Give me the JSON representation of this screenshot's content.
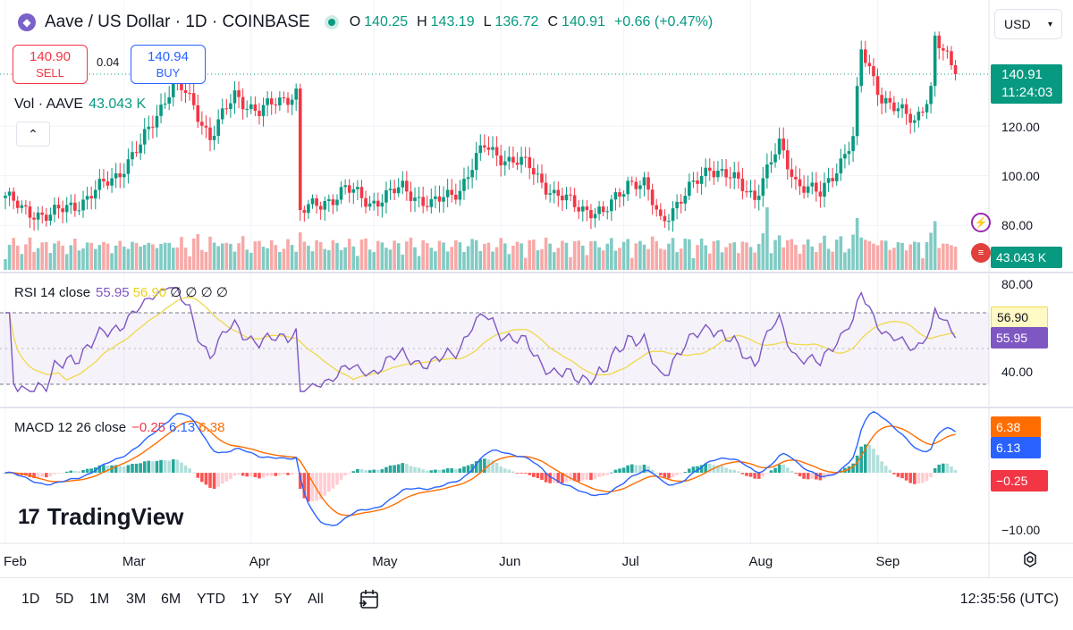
{
  "header": {
    "symbol": "Aave / US Dollar · 1D · COINBASE",
    "open_label": "O",
    "open": "140.25",
    "high_label": "H",
    "high": "143.19",
    "low_label": "L",
    "low": "136.72",
    "close_label": "C",
    "close": "140.91",
    "change": "+0.66 (+0.47%)",
    "currency": "USD"
  },
  "trade": {
    "sell_price": "140.90",
    "sell_label": "SELL",
    "spread": "0.04",
    "buy_price": "140.94",
    "buy_label": "BUY"
  },
  "volume_pane": {
    "label": "Vol · AAVE",
    "value": "43.043 K"
  },
  "rsi_pane": {
    "label": "RSI 14 close",
    "rsi": "55.95",
    "ma": "56.90",
    "extra": "∅ ∅ ∅ ∅"
  },
  "macd_pane": {
    "label": "MACD 12 26 close",
    "hist": "−0.25",
    "macd": "6.13",
    "signal": "6.38"
  },
  "brand": "TradingView",
  "axis": {
    "price_ticks": [
      "120.00",
      "100.00",
      "80.00"
    ],
    "rsi_ticks": [
      "80.00",
      "40.00"
    ],
    "macd_ticks": [
      "−10.00"
    ],
    "months": [
      "Feb",
      "Mar",
      "Apr",
      "May",
      "Jun",
      "Jul",
      "Aug",
      "Sep"
    ]
  },
  "badges": {
    "last_price": "140.91",
    "countdown": "11:24:03",
    "volume": "43.043 K",
    "rsi_ma": "56.90",
    "rsi": "55.95",
    "macd_signal": "6.38",
    "macd": "6.13",
    "macd_hist": "−0.25"
  },
  "footer": {
    "ranges": [
      "1D",
      "5D",
      "1M",
      "3M",
      "6M",
      "YTD",
      "1Y",
      "5Y",
      "All"
    ],
    "clock": "12:35:56 (UTC)"
  },
  "colors": {
    "up": "#089981",
    "down": "#f23645",
    "rsi": "#7e57c2",
    "rsi_ma": "#f0d94a",
    "macd": "#2962ff",
    "signal": "#ff6d00",
    "vol_up": "#80cbc4",
    "vol_down": "#f7a9a7"
  },
  "chart_data": {
    "type": "candlestick",
    "title": "Aave / US Dollar · 1D · COINBASE",
    "price_range": [
      70,
      160
    ],
    "x_months": [
      "Feb",
      "Mar",
      "Apr",
      "May",
      "Jun",
      "Jul",
      "Aug",
      "Sep"
    ],
    "close_keypoints": [
      [
        "Feb 01",
        92
      ],
      [
        "Feb 05",
        86
      ],
      [
        "Feb 12",
        84
      ],
      [
        "Feb 20",
        90
      ],
      [
        "Feb 28",
        100
      ],
      [
        "Mar 05",
        112
      ],
      [
        "Mar 10",
        128
      ],
      [
        "Mar 13",
        138
      ],
      [
        "Mar 16",
        133
      ],
      [
        "Mar 22",
        116
      ],
      [
        "Mar 28",
        132
      ],
      [
        "Apr 03",
        126
      ],
      [
        "Apr 08",
        130
      ],
      [
        "Apr 12",
        134
      ],
      [
        "Apr 13",
        86
      ],
      [
        "Apr 18",
        88
      ],
      [
        "Apr 24",
        95
      ],
      [
        "Apr 30",
        89
      ],
      [
        "May 08",
        95
      ],
      [
        "May 15",
        88
      ],
      [
        "May 22",
        95
      ],
      [
        "May 28",
        112
      ],
      [
        "Jun 03",
        106
      ],
      [
        "Jun 08",
        104
      ],
      [
        "Jun 14",
        92
      ],
      [
        "Jun 20",
        88
      ],
      [
        "Jun 26",
        84
      ],
      [
        "Jul 02",
        98
      ],
      [
        "Jul 06",
        96
      ],
      [
        "Jul 10",
        82
      ],
      [
        "Jul 16",
        92
      ],
      [
        "Jul 22",
        104
      ],
      [
        "Jul 28",
        98
      ],
      [
        "Aug 02",
        92
      ],
      [
        "Aug 08",
        112
      ],
      [
        "Aug 12",
        98
      ],
      [
        "Aug 18",
        92
      ],
      [
        "Aug 26",
        115
      ],
      [
        "Aug 28",
        150
      ],
      [
        "Sep 02",
        132
      ],
      [
        "Sep 06",
        126
      ],
      [
        "Sep 10",
        122
      ],
      [
        "Sep 14",
        135
      ],
      [
        "Sep 15",
        155
      ],
      [
        "Sep 20",
        141
      ]
    ],
    "last_close": 140.91,
    "rsi": {
      "last": 55.95,
      "ma_last": 56.9,
      "range": [
        25,
        85
      ],
      "bands": [
        70,
        30
      ]
    },
    "macd": {
      "macd_last": 6.13,
      "signal_last": 6.38,
      "hist_last": -0.25,
      "range": [
        -12,
        10
      ]
    },
    "volume_last": "43.043 K"
  }
}
